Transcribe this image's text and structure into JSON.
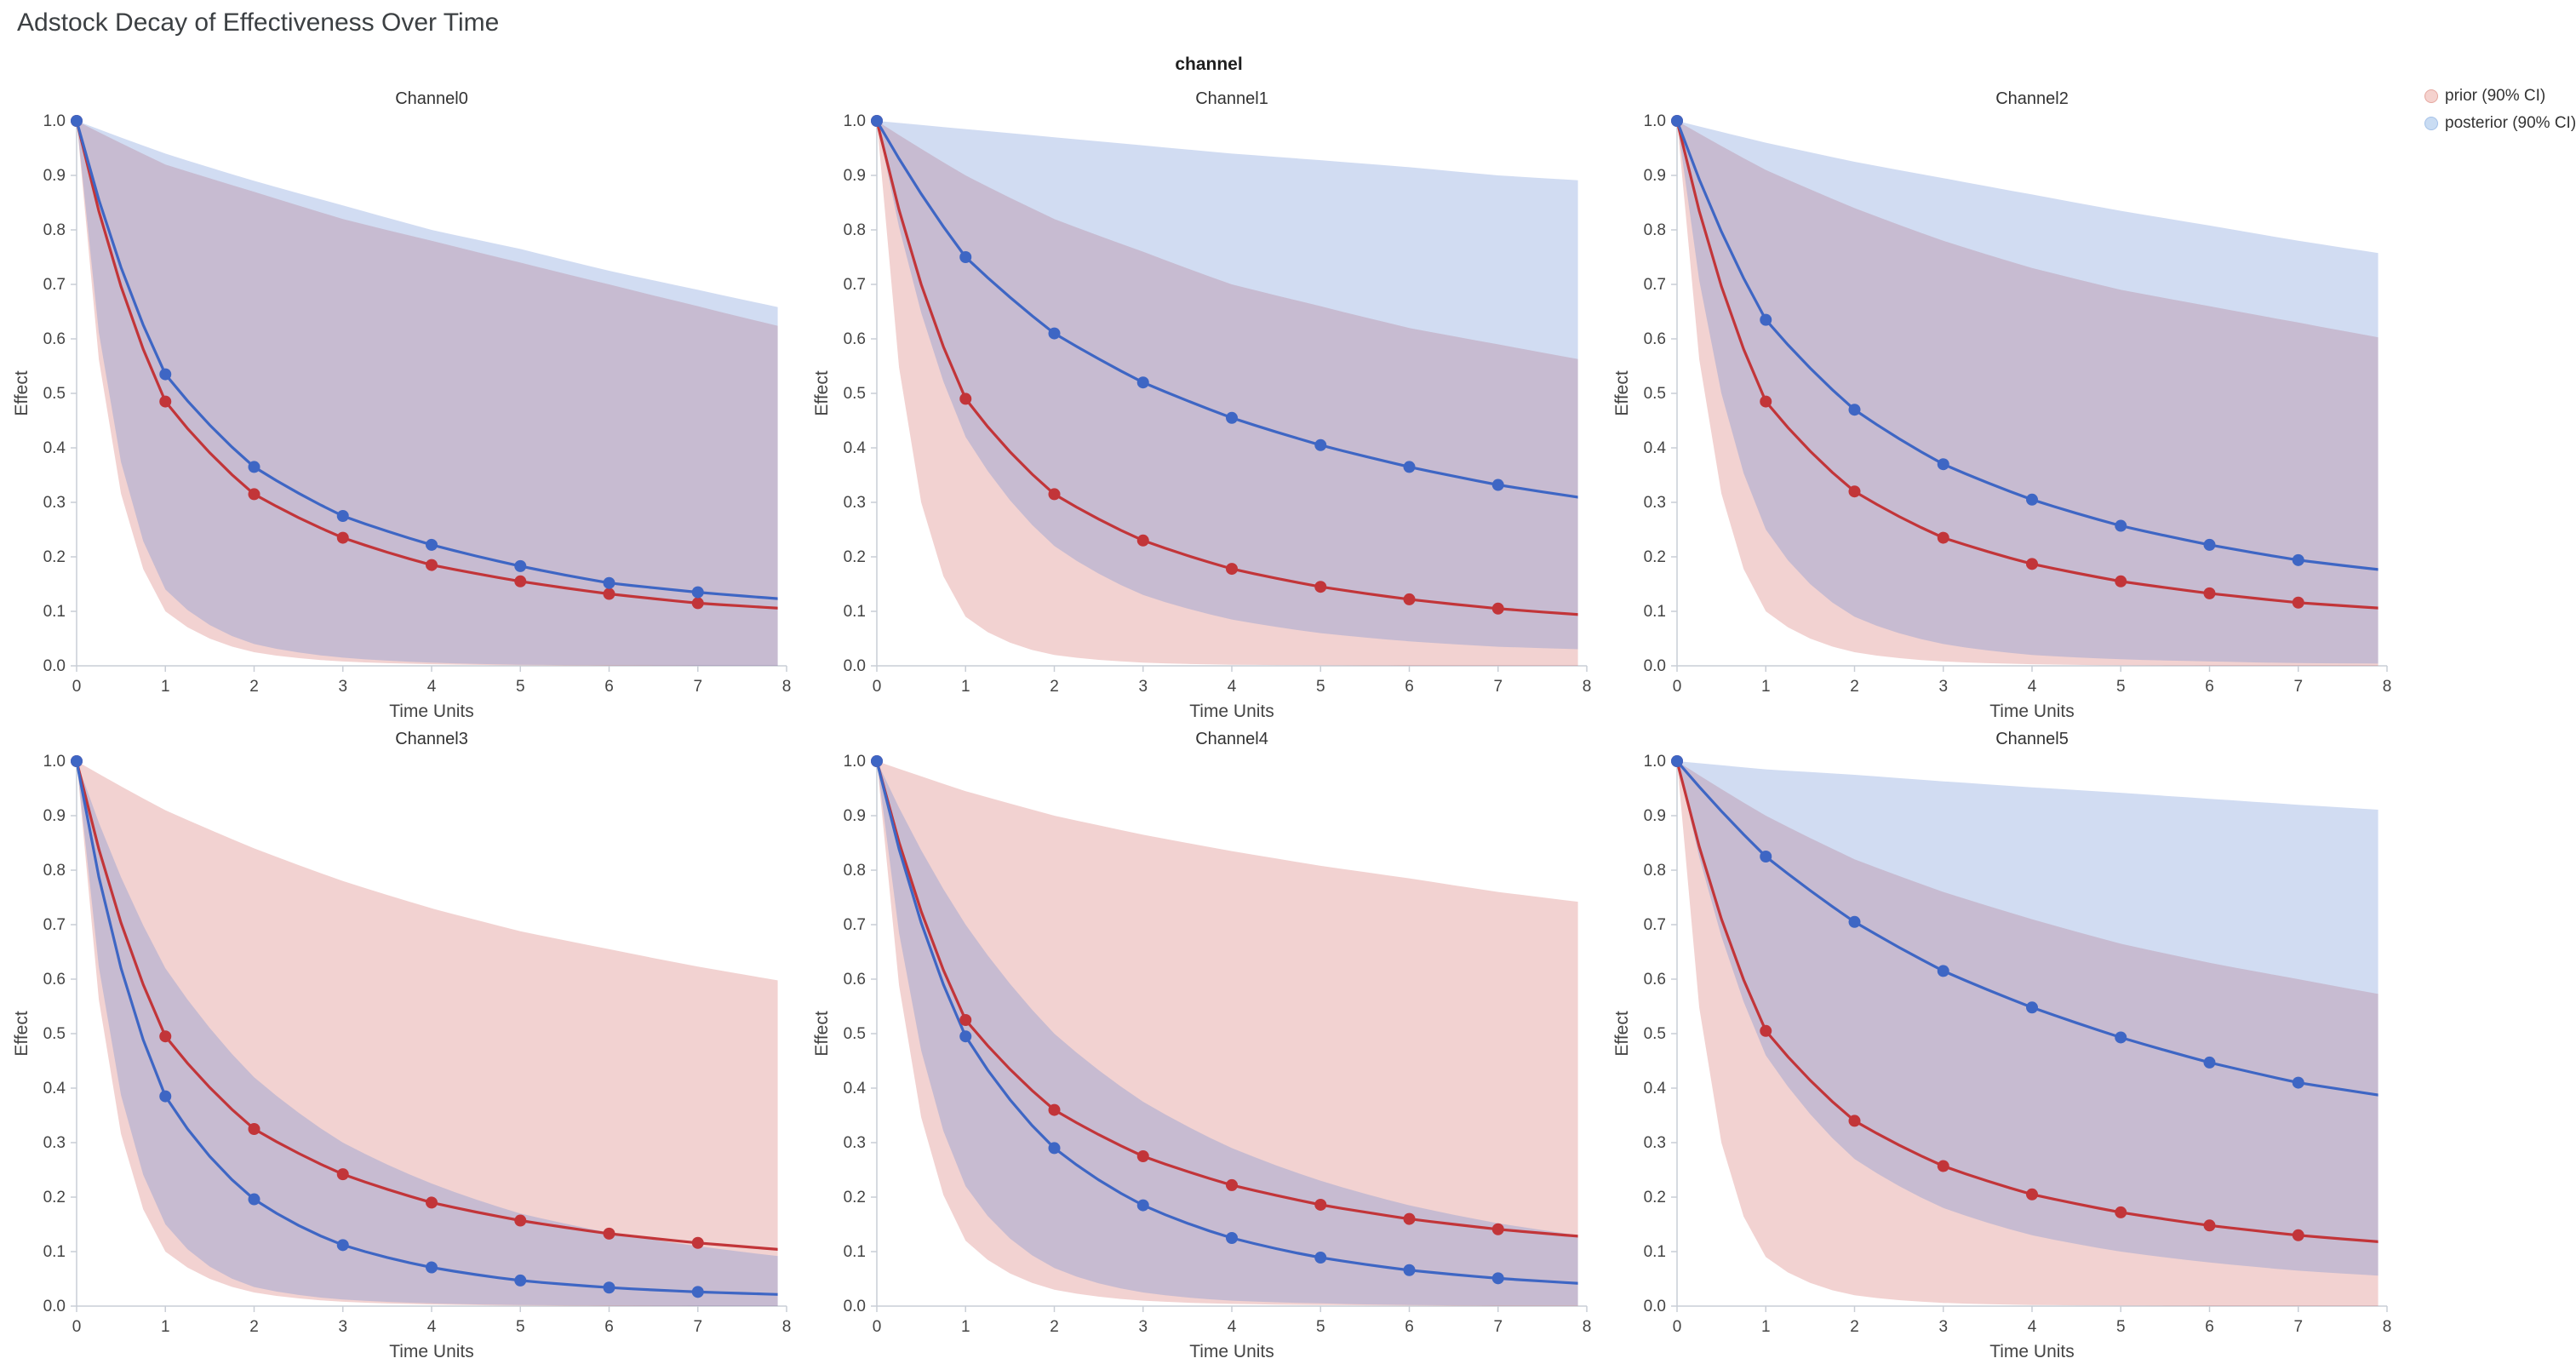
{
  "chart_data": {
    "type": "line",
    "suptitle": "Adstock Decay of Effectiveness Over Time",
    "title": "channel",
    "xlabel": "Time Units",
    "ylabel": "Effect",
    "xlim": [
      0,
      8
    ],
    "ylim": [
      0,
      1
    ],
    "x_clip": 7.9,
    "xticks": [
      0,
      1,
      2,
      3,
      4,
      5,
      6,
      7,
      8
    ],
    "yticks": [
      0.0,
      0.1,
      0.2,
      0.3,
      0.4,
      0.5,
      0.6,
      0.7,
      0.8,
      0.9,
      1.0
    ],
    "x": [
      0,
      1,
      2,
      3,
      4,
      5,
      6,
      7,
      8
    ],
    "marker_count": 8,
    "legend": [
      {
        "label": "prior (90% CI)",
        "line_color": "#C23539",
        "band_color": "rgba(205,75,70,0.25)"
      },
      {
        "label": "posterior (90% CI)",
        "line_color": "#3E66C4",
        "band_color": "rgba(90,130,210,0.28)"
      }
    ],
    "subplots": [
      {
        "name": "Channel0",
        "prior": {
          "mean": [
            1.0,
            0.485,
            0.315,
            0.235,
            0.185,
            0.155,
            0.132,
            0.115,
            0.105
          ],
          "upper": [
            1.0,
            0.92,
            0.87,
            0.82,
            0.78,
            0.74,
            0.7,
            0.66,
            0.62
          ],
          "lower": [
            1.0,
            0.1,
            0.025,
            0.008,
            0.003,
            0.001,
            0.0,
            0.0,
            0.0
          ]
        },
        "posterior": {
          "mean": [
            1.0,
            0.535,
            0.365,
            0.275,
            0.222,
            0.183,
            0.152,
            0.135,
            0.122
          ],
          "upper": [
            1.0,
            0.94,
            0.89,
            0.845,
            0.8,
            0.765,
            0.725,
            0.69,
            0.655
          ],
          "lower": [
            1.0,
            0.14,
            0.04,
            0.015,
            0.006,
            0.002,
            0.001,
            0.0,
            0.0
          ]
        }
      },
      {
        "name": "Channel1",
        "prior": {
          "mean": [
            1.0,
            0.49,
            0.315,
            0.23,
            0.178,
            0.145,
            0.122,
            0.105,
            0.093
          ],
          "upper": [
            1.0,
            0.9,
            0.82,
            0.76,
            0.7,
            0.66,
            0.62,
            0.59,
            0.56
          ],
          "lower": [
            1.0,
            0.09,
            0.02,
            0.006,
            0.002,
            0.001,
            0.0,
            0.0,
            0.0
          ]
        },
        "posterior": {
          "mean": [
            1.0,
            0.75,
            0.61,
            0.52,
            0.455,
            0.405,
            0.365,
            0.332,
            0.307
          ],
          "upper": [
            1.0,
            0.985,
            0.97,
            0.955,
            0.94,
            0.928,
            0.915,
            0.9,
            0.89
          ],
          "lower": [
            1.0,
            0.42,
            0.22,
            0.13,
            0.085,
            0.06,
            0.045,
            0.035,
            0.03
          ]
        }
      },
      {
        "name": "Channel2",
        "prior": {
          "mean": [
            1.0,
            0.485,
            0.32,
            0.235,
            0.187,
            0.155,
            0.133,
            0.116,
            0.105
          ],
          "upper": [
            1.0,
            0.91,
            0.84,
            0.78,
            0.73,
            0.69,
            0.66,
            0.63,
            0.6
          ],
          "lower": [
            1.0,
            0.1,
            0.025,
            0.008,
            0.003,
            0.001,
            0.0,
            0.0,
            0.0
          ]
        },
        "posterior": {
          "mean": [
            1.0,
            0.635,
            0.47,
            0.37,
            0.305,
            0.257,
            0.222,
            0.194,
            0.175
          ],
          "upper": [
            1.0,
            0.96,
            0.925,
            0.895,
            0.865,
            0.835,
            0.808,
            0.78,
            0.755
          ],
          "lower": [
            1.0,
            0.25,
            0.09,
            0.04,
            0.02,
            0.012,
            0.008,
            0.005,
            0.004
          ]
        }
      },
      {
        "name": "Channel3",
        "prior": {
          "mean": [
            1.0,
            0.495,
            0.325,
            0.242,
            0.19,
            0.157,
            0.133,
            0.116,
            0.103
          ],
          "upper": [
            1.0,
            0.91,
            0.84,
            0.78,
            0.73,
            0.688,
            0.655,
            0.623,
            0.595
          ],
          "lower": [
            1.0,
            0.1,
            0.025,
            0.008,
            0.003,
            0.001,
            0.0,
            0.0,
            0.0
          ]
        },
        "posterior": {
          "mean": [
            1.0,
            0.385,
            0.196,
            0.112,
            0.071,
            0.047,
            0.034,
            0.026,
            0.021
          ],
          "upper": [
            1.0,
            0.62,
            0.42,
            0.3,
            0.225,
            0.17,
            0.135,
            0.11,
            0.09
          ],
          "lower": [
            1.0,
            0.15,
            0.035,
            0.012,
            0.005,
            0.002,
            0.001,
            0.0,
            0.0
          ]
        }
      },
      {
        "name": "Channel4",
        "prior": {
          "mean": [
            1.0,
            0.525,
            0.36,
            0.275,
            0.222,
            0.186,
            0.16,
            0.141,
            0.127
          ],
          "upper": [
            1.0,
            0.945,
            0.9,
            0.865,
            0.835,
            0.808,
            0.785,
            0.76,
            0.74
          ],
          "lower": [
            1.0,
            0.12,
            0.03,
            0.01,
            0.004,
            0.002,
            0.001,
            0.0,
            0.0
          ]
        },
        "posterior": {
          "mean": [
            1.0,
            0.495,
            0.29,
            0.185,
            0.125,
            0.089,
            0.066,
            0.051,
            0.041
          ],
          "upper": [
            1.0,
            0.7,
            0.5,
            0.375,
            0.29,
            0.23,
            0.185,
            0.152,
            0.128
          ],
          "lower": [
            1.0,
            0.22,
            0.07,
            0.025,
            0.01,
            0.005,
            0.002,
            0.001,
            0.001
          ]
        }
      },
      {
        "name": "Channel5",
        "prior": {
          "mean": [
            1.0,
            0.505,
            0.34,
            0.257,
            0.205,
            0.172,
            0.148,
            0.13,
            0.117
          ],
          "upper": [
            1.0,
            0.9,
            0.82,
            0.76,
            0.71,
            0.665,
            0.63,
            0.6,
            0.57
          ],
          "lower": [
            1.0,
            0.09,
            0.02,
            0.006,
            0.002,
            0.001,
            0.0,
            0.0,
            0.0
          ]
        },
        "posterior": {
          "mean": [
            1.0,
            0.825,
            0.705,
            0.615,
            0.548,
            0.493,
            0.447,
            0.41,
            0.385
          ],
          "upper": [
            1.0,
            0.985,
            0.975,
            0.963,
            0.952,
            0.942,
            0.931,
            0.92,
            0.91
          ],
          "lower": [
            1.0,
            0.46,
            0.27,
            0.18,
            0.13,
            0.1,
            0.08,
            0.065,
            0.055
          ]
        }
      }
    ]
  }
}
